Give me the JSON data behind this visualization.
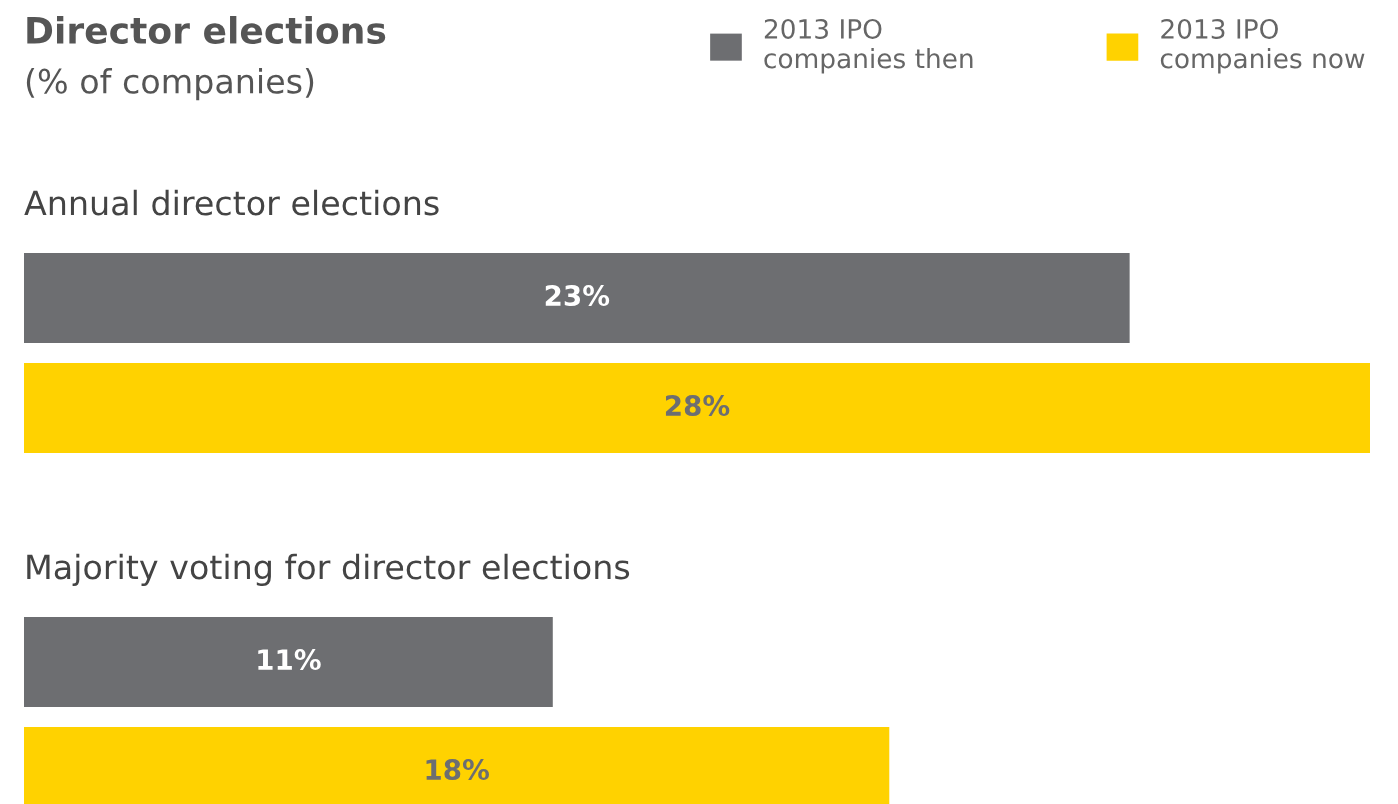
{
  "chart_data": {
    "type": "bar",
    "orientation": "horizontal",
    "title": "Director elections",
    "subtitle": "(% of companies)",
    "categories": [
      "Annual director elections",
      "Majority voting for director elections"
    ],
    "series": [
      {
        "name": "2013 IPO companies then",
        "color": "#6d6e71",
        "values": [
          23,
          11
        ],
        "value_labels": [
          "23%",
          "11%"
        ]
      },
      {
        "name": "2013 IPO companies now",
        "color": "#ffd200",
        "values": [
          28,
          18
        ],
        "value_labels": [
          "28%",
          "18%"
        ]
      }
    ],
    "tick_labels": false,
    "legend": "top right"
  }
}
